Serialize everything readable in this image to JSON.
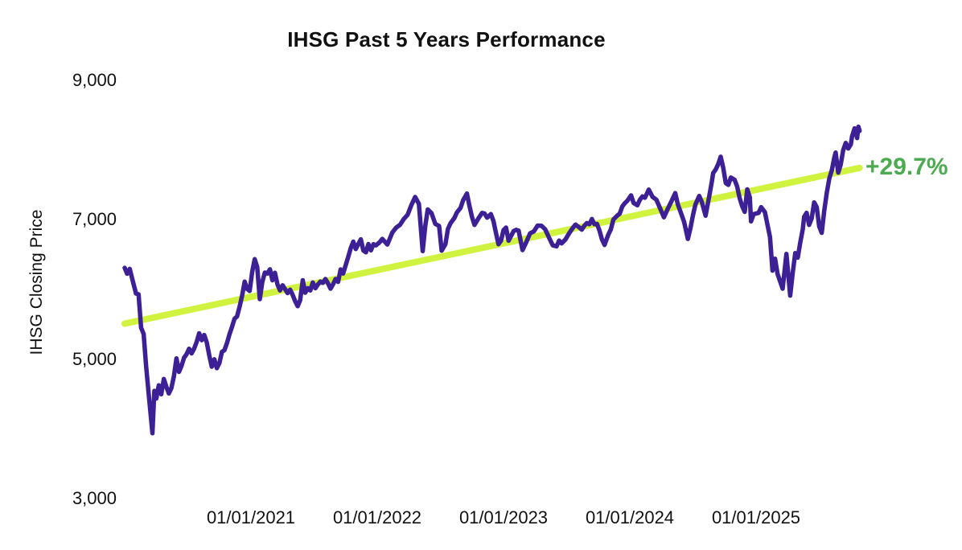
{
  "chart_data": {
    "type": "line",
    "title": "IHSG Past 5 Years Performance",
    "xlabel": "",
    "ylabel": "IHSG Closing Price",
    "grid": false,
    "legend": "none",
    "x_unit": "decimal_year",
    "x_range": [
      2020.0,
      2025.83
    ],
    "ylim": [
      3000,
      9000
    ],
    "y_ticks": [
      {
        "label": "9,000",
        "value": 9000
      },
      {
        "label": "7,000",
        "value": 7000
      },
      {
        "label": "5,000",
        "value": 5000
      },
      {
        "label": "3,000",
        "value": 3000
      }
    ],
    "x_ticks": [
      {
        "label": "01/01/2021",
        "value": 2021
      },
      {
        "label": "01/01/2022",
        "value": 2022
      },
      {
        "label": "01/01/2023",
        "value": 2023
      },
      {
        "label": "01/01/2024",
        "value": 2024
      },
      {
        "label": "01/01/2025",
        "value": 2025
      }
    ],
    "annotation": {
      "text": "+29.7%",
      "color": "#4caa50"
    },
    "series": [
      {
        "name": "Linear trend",
        "color": "#cff33f",
        "stroke_width": 8,
        "points": [
          [
            2020.0,
            5510
          ],
          [
            2025.82,
            7745
          ]
        ]
      },
      {
        "name": "IHSG Closing Price",
        "color": "#3d1f96",
        "stroke_width": 5.5,
        "points": [
          [
            2020.0,
            6310
          ],
          [
            2020.02,
            6225
          ],
          [
            2020.04,
            6295
          ],
          [
            2020.07,
            6080
          ],
          [
            2020.09,
            5942
          ],
          [
            2020.11,
            5930
          ],
          [
            2020.13,
            5452
          ],
          [
            2020.15,
            5361
          ],
          [
            2020.17,
            4895
          ],
          [
            2020.19,
            4508
          ],
          [
            2020.22,
            3938
          ],
          [
            2020.235,
            4545
          ],
          [
            2020.25,
            4435
          ],
          [
            2020.27,
            4625
          ],
          [
            2020.29,
            4497
          ],
          [
            2020.31,
            4716
          ],
          [
            2020.33,
            4605
          ],
          [
            2020.35,
            4508
          ],
          [
            2020.37,
            4585
          ],
          [
            2020.39,
            4754
          ],
          [
            2020.41,
            5011
          ],
          [
            2020.43,
            4817
          ],
          [
            2020.45,
            4905
          ],
          [
            2020.47,
            5020
          ],
          [
            2020.49,
            5070
          ],
          [
            2020.51,
            5150
          ],
          [
            2020.53,
            5083
          ],
          [
            2020.55,
            5150
          ],
          [
            2020.57,
            5247
          ],
          [
            2020.59,
            5371
          ],
          [
            2020.61,
            5272
          ],
          [
            2020.63,
            5347
          ],
          [
            2020.65,
            5238
          ],
          [
            2020.67,
            5053
          ],
          [
            2020.69,
            4891
          ],
          [
            2020.71,
            4998
          ],
          [
            2020.73,
            4870
          ],
          [
            2020.75,
            4945
          ],
          [
            2020.77,
            5105
          ],
          [
            2020.79,
            5128
          ],
          [
            2020.81,
            5232
          ],
          [
            2020.83,
            5356
          ],
          [
            2020.85,
            5462
          ],
          [
            2020.87,
            5581
          ],
          [
            2020.89,
            5612
          ],
          [
            2020.91,
            5754
          ],
          [
            2020.93,
            5910
          ],
          [
            2020.95,
            6113
          ],
          [
            2020.97,
            6008
          ],
          [
            2020.99,
            5979
          ],
          [
            2021.01,
            6257
          ],
          [
            2021.03,
            6435
          ],
          [
            2021.05,
            6321
          ],
          [
            2021.07,
            5862
          ],
          [
            2021.09,
            6107
          ],
          [
            2021.11,
            6242
          ],
          [
            2021.13,
            6228
          ],
          [
            2021.15,
            6290
          ],
          [
            2021.17,
            6132
          ],
          [
            2021.19,
            6240
          ],
          [
            2021.21,
            6072
          ],
          [
            2021.23,
            5986
          ],
          [
            2021.25,
            6060
          ],
          [
            2021.27,
            6006
          ],
          [
            2021.29,
            5948
          ],
          [
            2021.31,
            5996
          ],
          [
            2021.33,
            5924
          ],
          [
            2021.35,
            5833
          ],
          [
            2021.37,
            5760
          ],
          [
            2021.39,
            5848
          ],
          [
            2021.41,
            6133
          ],
          [
            2021.43,
            5954
          ],
          [
            2021.45,
            6019
          ],
          [
            2021.47,
            5985
          ],
          [
            2021.49,
            6102
          ],
          [
            2021.51,
            6017
          ],
          [
            2021.53,
            6070
          ],
          [
            2021.55,
            6113
          ],
          [
            2021.57,
            6096
          ],
          [
            2021.59,
            6150
          ],
          [
            2021.61,
            6088
          ],
          [
            2021.63,
            6012
          ],
          [
            2021.65,
            6075
          ],
          [
            2021.67,
            6150
          ],
          [
            2021.69,
            6109
          ],
          [
            2021.71,
            6287
          ],
          [
            2021.73,
            6228
          ],
          [
            2021.75,
            6350
          ],
          [
            2021.77,
            6466
          ],
          [
            2021.79,
            6591
          ],
          [
            2021.81,
            6686
          ],
          [
            2021.83,
            6580
          ],
          [
            2021.85,
            6651
          ],
          [
            2021.87,
            6720
          ],
          [
            2021.89,
            6561
          ],
          [
            2021.91,
            6533
          ],
          [
            2021.93,
            6652
          ],
          [
            2021.95,
            6562
          ],
          [
            2021.97,
            6650
          ],
          [
            2021.99,
            6633
          ],
          [
            2022.02,
            6680
          ],
          [
            2022.04,
            6726
          ],
          [
            2022.08,
            6645
          ],
          [
            2022.12,
            6818
          ],
          [
            2022.15,
            6888
          ],
          [
            2022.18,
            6928
          ],
          [
            2022.21,
            7011
          ],
          [
            2022.24,
            7071
          ],
          [
            2022.27,
            7210
          ],
          [
            2022.3,
            7327
          ],
          [
            2022.33,
            7229
          ],
          [
            2022.36,
            6550
          ],
          [
            2022.38,
            6910
          ],
          [
            2022.4,
            7148
          ],
          [
            2022.43,
            7095
          ],
          [
            2022.46,
            6940
          ],
          [
            2022.49,
            6911
          ],
          [
            2022.51,
            6557
          ],
          [
            2022.54,
            6651
          ],
          [
            2022.56,
            6870
          ],
          [
            2022.58,
            6951
          ],
          [
            2022.61,
            7023
          ],
          [
            2022.63,
            7102
          ],
          [
            2022.66,
            7172
          ],
          [
            2022.68,
            7281
          ],
          [
            2022.71,
            7377
          ],
          [
            2022.73,
            7200
          ],
          [
            2022.75,
            7041
          ],
          [
            2022.77,
            6927
          ],
          [
            2022.8,
            7017
          ],
          [
            2022.83,
            7098
          ],
          [
            2022.85,
            7089
          ],
          [
            2022.87,
            7030
          ],
          [
            2022.9,
            7081
          ],
          [
            2022.92,
            6987
          ],
          [
            2022.94,
            6812
          ],
          [
            2022.96,
            6650
          ],
          [
            2022.98,
            6700
          ],
          [
            2023.0,
            6851
          ],
          [
            2023.02,
            6888
          ],
          [
            2023.04,
            6700
          ],
          [
            2023.08,
            6839
          ],
          [
            2023.1,
            6856
          ],
          [
            2023.12,
            6843
          ],
          [
            2023.15,
            6565
          ],
          [
            2023.18,
            6678
          ],
          [
            2023.21,
            6805
          ],
          [
            2023.24,
            6833
          ],
          [
            2023.27,
            6917
          ],
          [
            2023.3,
            6915
          ],
          [
            2023.33,
            6863
          ],
          [
            2023.36,
            6745
          ],
          [
            2023.39,
            6633
          ],
          [
            2023.42,
            6619
          ],
          [
            2023.44,
            6702
          ],
          [
            2023.46,
            6661
          ],
          [
            2023.49,
            6716
          ],
          [
            2023.52,
            6806
          ],
          [
            2023.55,
            6886
          ],
          [
            2023.57,
            6931
          ],
          [
            2023.6,
            6891
          ],
          [
            2023.62,
            6859
          ],
          [
            2023.64,
            6915
          ],
          [
            2023.66,
            6953
          ],
          [
            2023.68,
            6937
          ],
          [
            2023.7,
            7011
          ],
          [
            2023.72,
            6937
          ],
          [
            2023.74,
            6940
          ],
          [
            2023.76,
            6846
          ],
          [
            2023.78,
            6714
          ],
          [
            2023.8,
            6639
          ],
          [
            2023.83,
            6788
          ],
          [
            2023.85,
            6862
          ],
          [
            2023.87,
            7004
          ],
          [
            2023.9,
            7059
          ],
          [
            2023.92,
            7087
          ],
          [
            2023.94,
            7190
          ],
          [
            2023.96,
            7237
          ],
          [
            2023.98,
            7273
          ],
          [
            2024.01,
            7350
          ],
          [
            2024.03,
            7241
          ],
          [
            2024.06,
            7208
          ],
          [
            2024.08,
            7289
          ],
          [
            2024.1,
            7335
          ],
          [
            2024.12,
            7316
          ],
          [
            2024.15,
            7433
          ],
          [
            2024.18,
            7328
          ],
          [
            2024.21,
            7289
          ],
          [
            2024.24,
            7164
          ],
          [
            2024.27,
            7036
          ],
          [
            2024.3,
            7155
          ],
          [
            2024.33,
            7266
          ],
          [
            2024.36,
            7383
          ],
          [
            2024.38,
            7222
          ],
          [
            2024.41,
            7071
          ],
          [
            2024.43,
            6970
          ],
          [
            2024.46,
            6726
          ],
          [
            2024.48,
            6880
          ],
          [
            2024.5,
            7064
          ],
          [
            2024.52,
            7220
          ],
          [
            2024.55,
            7342
          ],
          [
            2024.57,
            7256
          ],
          [
            2024.6,
            7059
          ],
          [
            2024.63,
            7347
          ],
          [
            2024.65,
            7554
          ],
          [
            2024.66,
            7670
          ],
          [
            2024.68,
            7721
          ],
          [
            2024.7,
            7798
          ],
          [
            2024.72,
            7905
          ],
          [
            2024.74,
            7744
          ],
          [
            2024.76,
            7528
          ],
          [
            2024.78,
            7501
          ],
          [
            2024.8,
            7606
          ],
          [
            2024.83,
            7574
          ],
          [
            2024.85,
            7479
          ],
          [
            2024.87,
            7308
          ],
          [
            2024.89,
            7195
          ],
          [
            2024.91,
            7114
          ],
          [
            2024.93,
            7437
          ],
          [
            2024.95,
            7324
          ],
          [
            2024.96,
            6977
          ],
          [
            2024.98,
            7080
          ],
          [
            2025.02,
            7100
          ],
          [
            2025.04,
            7182
          ],
          [
            2025.07,
            7109
          ],
          [
            2025.09,
            6932
          ],
          [
            2025.11,
            6752
          ],
          [
            2025.13,
            6270
          ],
          [
            2025.15,
            6441
          ],
          [
            2025.17,
            6223
          ],
          [
            2025.21,
            6011
          ],
          [
            2025.24,
            6510
          ],
          [
            2025.27,
            5912
          ],
          [
            2025.29,
            6235
          ],
          [
            2025.31,
            6523
          ],
          [
            2025.33,
            6457
          ],
          [
            2025.35,
            6673
          ],
          [
            2025.37,
            6869
          ],
          [
            2025.38,
            7042
          ],
          [
            2025.4,
            7100
          ],
          [
            2025.42,
            6927
          ],
          [
            2025.44,
            7019
          ],
          [
            2025.46,
            7250
          ],
          [
            2025.48,
            7181
          ],
          [
            2025.5,
            6904
          ],
          [
            2025.52,
            6812
          ],
          [
            2025.54,
            7135
          ],
          [
            2025.56,
            7388
          ],
          [
            2025.58,
            7596
          ],
          [
            2025.6,
            7712
          ],
          [
            2025.62,
            7896
          ],
          [
            2025.63,
            7965
          ],
          [
            2025.65,
            7677
          ],
          [
            2025.67,
            7792
          ],
          [
            2025.69,
            8000
          ],
          [
            2025.71,
            8104
          ],
          [
            2025.73,
            8023
          ],
          [
            2025.75,
            8081
          ],
          [
            2025.76,
            8196
          ],
          [
            2025.78,
            8312
          ],
          [
            2025.8,
            8173
          ],
          [
            2025.81,
            8335
          ],
          [
            2025.82,
            8277
          ]
        ]
      }
    ]
  }
}
